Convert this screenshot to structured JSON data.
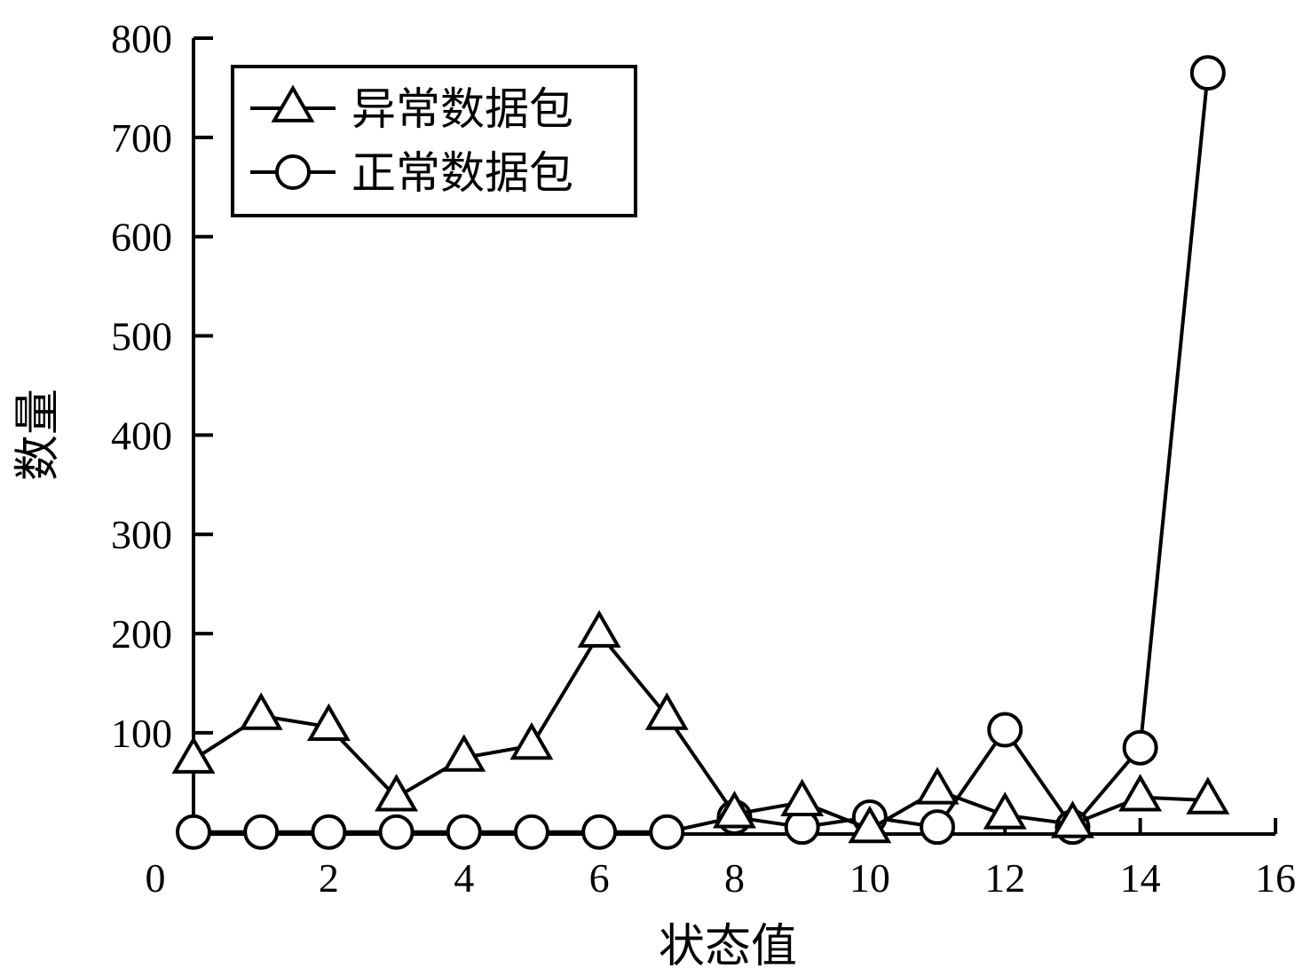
{
  "chart_data": {
    "type": "line",
    "title": "",
    "xlabel": "状态值",
    "ylabel": "数量",
    "xlim": [
      0,
      16
    ],
    "ylim": [
      -2,
      800
    ],
    "x_ticks": [
      "0",
      "2",
      "4",
      "6",
      "8",
      "10",
      "12",
      "14",
      "16"
    ],
    "y_ticks": [
      "100",
      "200",
      "300",
      "400",
      "500",
      "600",
      "700",
      "800"
    ],
    "grid": false,
    "legend_position": "top-left",
    "x": [
      0,
      1,
      2,
      3,
      4,
      5,
      6,
      7,
      8,
      9,
      10,
      11,
      12,
      13,
      14,
      15
    ],
    "series": [
      {
        "name": "异常数据包",
        "marker": "triangle",
        "values": [
          73,
          117,
          106,
          35,
          75,
          87,
          200,
          117,
          18,
          30,
          3,
          42,
          17,
          8,
          35,
          32
        ]
      },
      {
        "name": "正常数据包",
        "marker": "circle",
        "values": [
          0,
          0,
          0,
          0,
          0,
          0,
          0,
          0,
          15,
          5,
          15,
          5,
          103,
          5,
          85,
          765
        ]
      }
    ]
  }
}
